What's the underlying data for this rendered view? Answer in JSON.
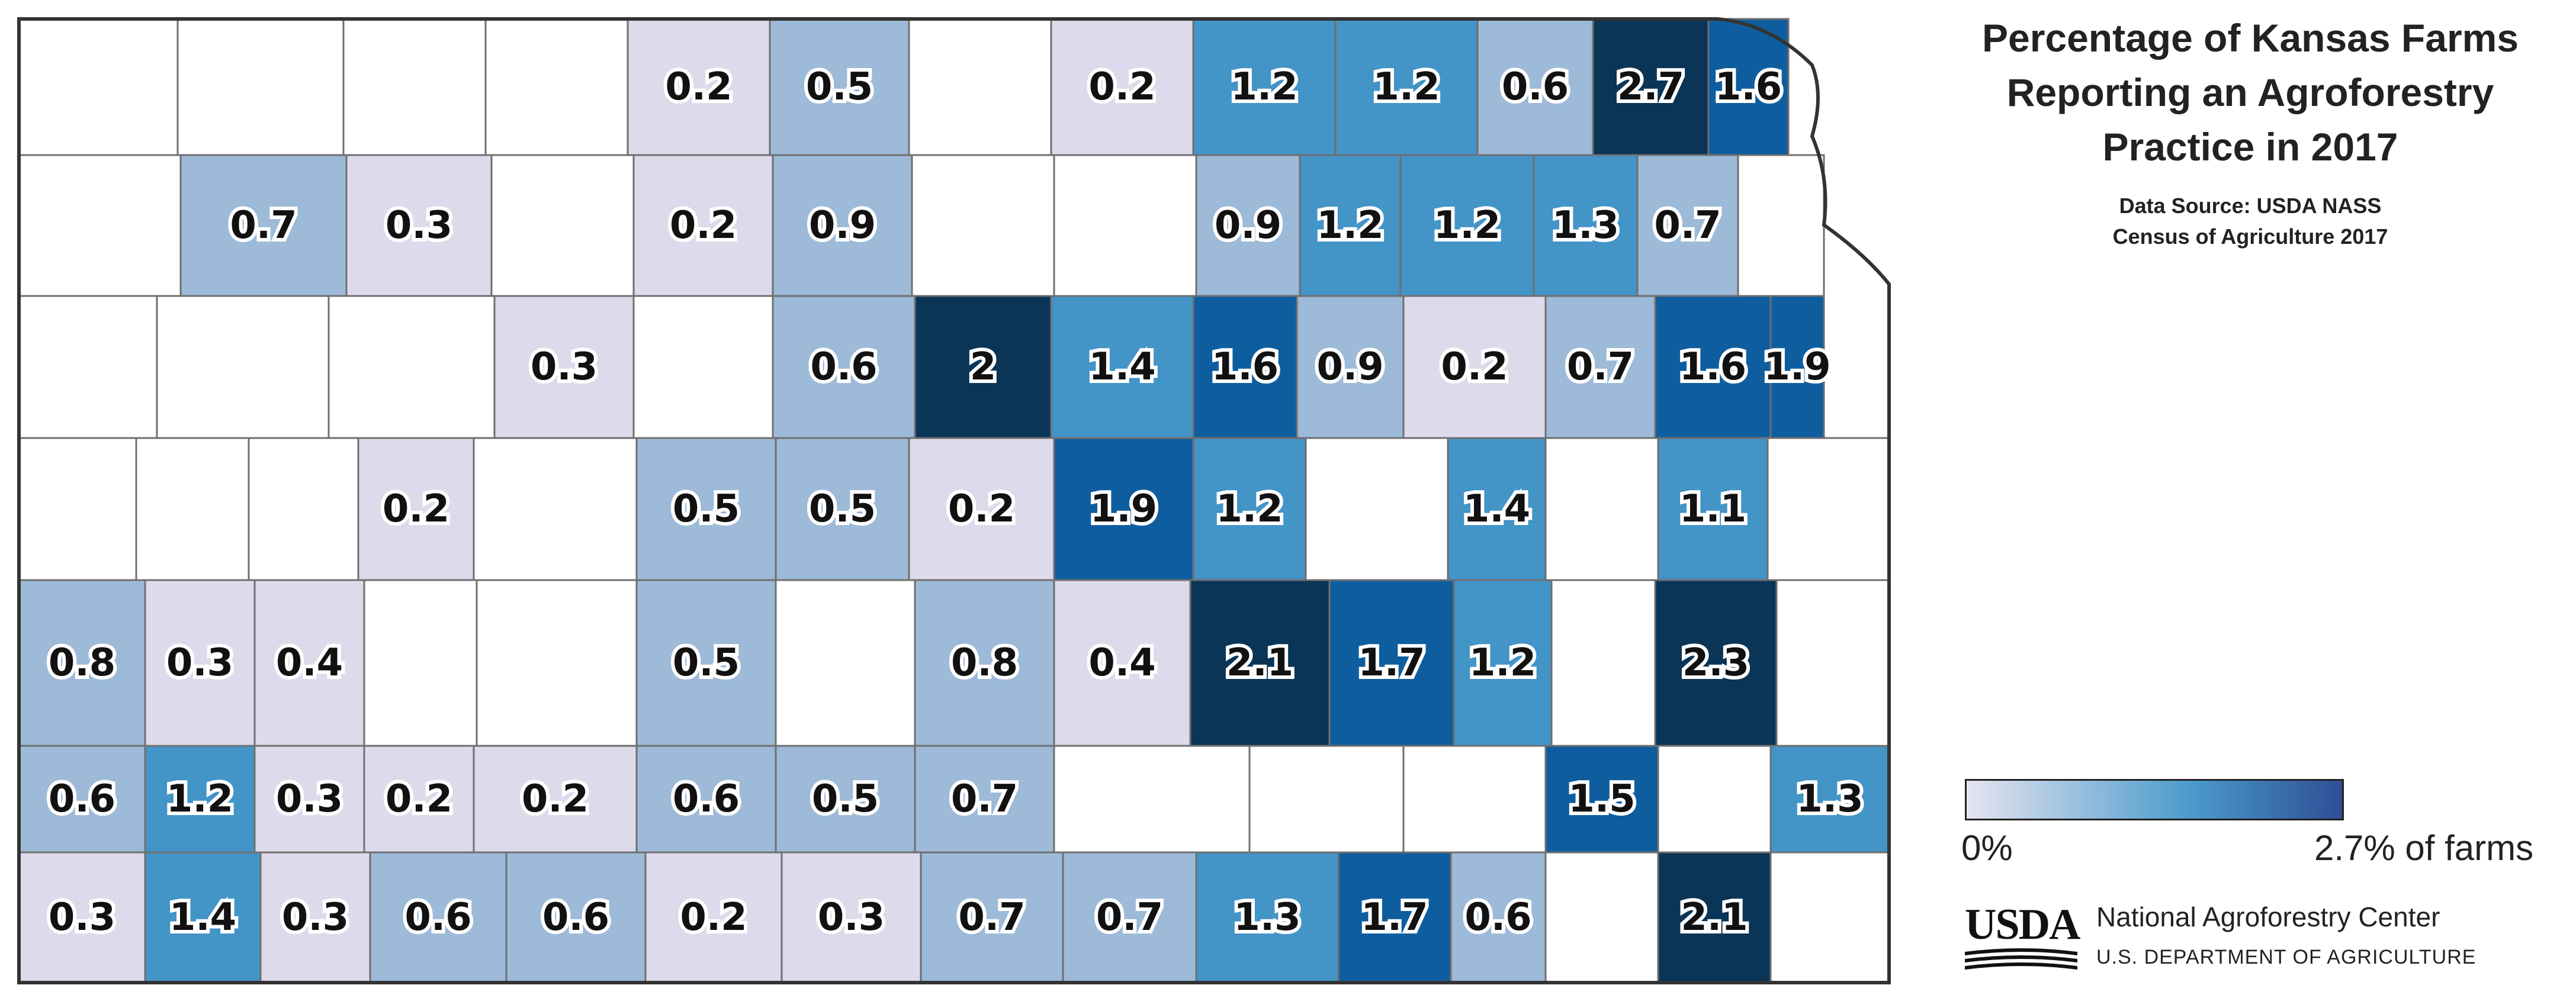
{
  "title_lines": [
    "Percentage of Kansas Farms",
    "Reporting an Agroforestry",
    "Practice in 2017"
  ],
  "source_lines": [
    "Data Source: USDA NASS",
    "Census of Agriculture 2017"
  ],
  "legend": {
    "min_label": "0%",
    "max_label": "2.7% of farms",
    "min_value": 0,
    "max_value": 2.7,
    "color_low": "#e6e4f0",
    "color_mid": "#4a9acb",
    "color_high": "#2f4e96"
  },
  "colors": {
    "no_data": "#ffffff",
    "class_1": "#dddbeb",
    "class_2": "#9dbad8",
    "class_3": "#4394c7",
    "class_4": "#0e5e9f",
    "class_5": "#0a3557",
    "border": "#555555"
  },
  "footer": {
    "logo_text": "USDA",
    "org_name": "National Agroforestry Center",
    "department": "U.S. DEPARTMENT OF AGRICULTURE"
  },
  "county_values": [
    {
      "id": "r1c5",
      "value": 0.2
    },
    {
      "id": "r1c6",
      "value": 0.5
    },
    {
      "id": "r1c8",
      "value": 0.2
    },
    {
      "id": "r1c9",
      "value": 1.2
    },
    {
      "id": "r1c10",
      "value": 1.2
    },
    {
      "id": "r1c11",
      "value": 0.6
    },
    {
      "id": "r1c12",
      "value": 2.7
    },
    {
      "id": "r1c13",
      "value": 1.6
    },
    {
      "id": "r2c2",
      "value": 0.7
    },
    {
      "id": "r2c3",
      "value": 0.3
    },
    {
      "id": "r2c5",
      "value": 0.2
    },
    {
      "id": "r2c6",
      "value": 0.9
    },
    {
      "id": "r2c9",
      "value": 0.9
    },
    {
      "id": "r2c10",
      "value": 1.2
    },
    {
      "id": "r2c11",
      "value": 1.2
    },
    {
      "id": "r2c12",
      "value": 1.3
    },
    {
      "id": "r2c13",
      "value": 0.7
    },
    {
      "id": "r3c4",
      "value": 0.3
    },
    {
      "id": "r3c6",
      "value": 0.6
    },
    {
      "id": "r3c7",
      "value": 2
    },
    {
      "id": "r3c8",
      "value": 1.4
    },
    {
      "id": "r3c9",
      "value": 1.6
    },
    {
      "id": "r3c10",
      "value": 0.9
    },
    {
      "id": "r3c11",
      "value": 0.2
    },
    {
      "id": "r3c12",
      "value": 0.7
    },
    {
      "id": "r3c13",
      "value": 1.6
    },
    {
      "id": "r3c14",
      "value": 1.9
    },
    {
      "id": "r4c4",
      "value": 0.2
    },
    {
      "id": "r4c6",
      "value": 0.5
    },
    {
      "id": "r4c7",
      "value": 0.5
    },
    {
      "id": "r4c8",
      "value": 0.2
    },
    {
      "id": "r4c9",
      "value": 1.9
    },
    {
      "id": "r4c10",
      "value": 1.2
    },
    {
      "id": "r4c11",
      "value": 1.4
    },
    {
      "id": "r4c12",
      "value": 1.1
    },
    {
      "id": "r5c6",
      "value": 0.5
    },
    {
      "id": "r5c8",
      "value": 0.8
    },
    {
      "id": "r5c9",
      "value": 0.4
    },
    {
      "id": "r5c10",
      "value": 2.1
    },
    {
      "id": "r5c11",
      "value": 1.7
    },
    {
      "id": "r5c12",
      "value": 1.2
    },
    {
      "id": "r5c13",
      "value": 2.3
    },
    {
      "id": "r6c5",
      "value": 0.2
    },
    {
      "id": "r6c6",
      "value": 0.6
    },
    {
      "id": "r6c7",
      "value": 0.5
    },
    {
      "id": "r6c8",
      "value": 0.7
    },
    {
      "id": "r6c9",
      "value": 1.5
    },
    {
      "id": "r6c10",
      "value": 1.3
    },
    {
      "id": "r7c4",
      "value": 0.2
    },
    {
      "id": "r7c5",
      "value": 0.6
    },
    {
      "id": "r7c6",
      "value": 0.2
    },
    {
      "id": "r7c7",
      "value": 0.3
    },
    {
      "id": "r7c8",
      "value": 0.7
    },
    {
      "id": "r7c9",
      "value": 0.7
    },
    {
      "id": "r7c10",
      "value": 1.3
    },
    {
      "id": "r7c11",
      "value": 1.7
    },
    {
      "id": "r7c12",
      "value": 0.6
    },
    {
      "id": "r7c13",
      "value": 2.1
    },
    {
      "id": "r8c5",
      "value": 0.6
    },
    {
      "id": "r8c7",
      "value": 0.3
    },
    {
      "id": "r8c8",
      "value": 1.4
    },
    {
      "id": "r8c9",
      "value": 0.3
    },
    {
      "id": "r8c10",
      "value": 0.6
    },
    {
      "id": "r8c11",
      "value": 1.2
    },
    {
      "id": "r8c12",
      "value": 0.3
    },
    {
      "id": "r8c13",
      "value": 0.8
    },
    {
      "id": "r8c14",
      "value": 0.3
    },
    {
      "id": "r8c15",
      "value": 0.4
    }
  ]
}
